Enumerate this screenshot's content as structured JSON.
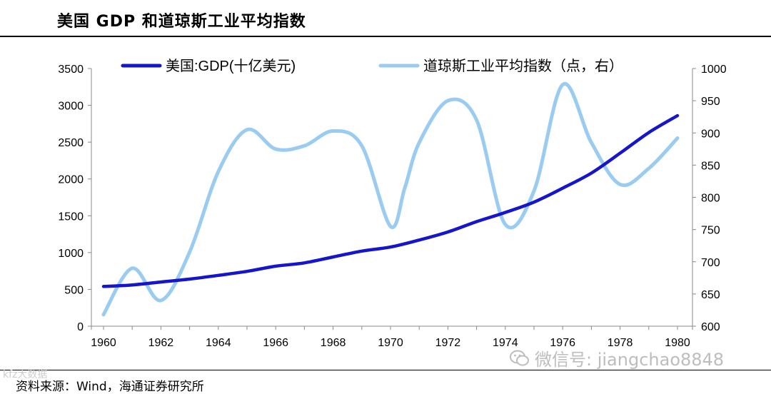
{
  "header": {
    "title": "美国 GDP 和道琼斯工业平均指数"
  },
  "footer": {
    "source": "资料来源：Wind，海通证券研究所",
    "watermark": "微信号: jiangchao8848",
    "corner_mark": "kfz大数据"
  },
  "colors": {
    "gdp_line": "#1515cc",
    "dow_line": "#99ccf0",
    "axis": "#888888"
  },
  "chart_data": {
    "type": "line",
    "title": "美国 GDP 和道琼斯工业平均指数",
    "x_ticks": [
      "1960",
      "1962",
      "1964",
      "1966",
      "1968",
      "1970",
      "1972",
      "1974",
      "1976",
      "1978",
      "1980"
    ],
    "y_left": {
      "ylim": [
        0,
        3500
      ],
      "ticks": [
        "0",
        "500",
        "1000",
        "1500",
        "2000",
        "2500",
        "3000",
        "3500"
      ]
    },
    "y_right": {
      "ylim": [
        600,
        1000
      ],
      "ticks": [
        "600",
        "650",
        "700",
        "750",
        "800",
        "850",
        "900",
        "950",
        "1000"
      ]
    },
    "series": [
      {
        "name": "美国:GDP(十亿美元)",
        "axis": "left",
        "x": [
          1960,
          1961,
          1962,
          1963,
          1964,
          1965,
          1966,
          1967,
          1968,
          1969,
          1970,
          1971,
          1972,
          1973,
          1974,
          1975,
          1976,
          1977,
          1978,
          1979,
          1980
        ],
        "values": [
          540,
          560,
          600,
          640,
          690,
          745,
          815,
          860,
          940,
          1020,
          1075,
          1170,
          1280,
          1420,
          1545,
          1685,
          1875,
          2080,
          2350,
          2630,
          2860
        ]
      },
      {
        "name": "道琼斯工业平均指数（点，右）",
        "axis": "right",
        "x": [
          1960,
          1961,
          1962,
          1963,
          1964,
          1965,
          1966,
          1967,
          1968,
          1969,
          1970,
          1970.5,
          1971,
          1972,
          1973,
          1974,
          1975,
          1976,
          1977,
          1978,
          1979,
          1980
        ],
        "values": [
          618,
          690,
          640,
          715,
          840,
          905,
          875,
          880,
          903,
          880,
          755,
          815,
          885,
          950,
          920,
          758,
          810,
          975,
          885,
          820,
          845,
          892
        ]
      }
    ]
  }
}
